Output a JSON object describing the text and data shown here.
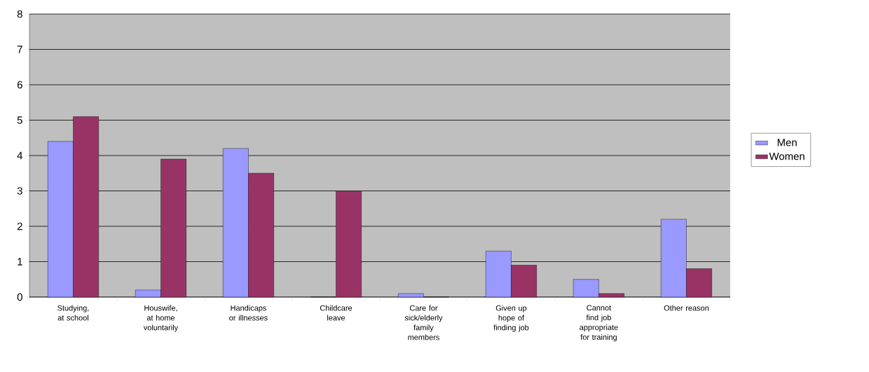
{
  "chart_data": {
    "type": "bar",
    "categories": [
      "Studying, at school",
      "Houswife, at home voluntarily",
      "Handicaps or illnesses",
      "Childcare leave",
      "Care for sick/elderly family members",
      "Given up hope of finding job",
      "Cannot find job appropriate for training",
      "Other reason"
    ],
    "series": [
      {
        "name": "Men",
        "color": "#9999ff",
        "values": [
          4.4,
          0.2,
          4.2,
          0,
          0.1,
          1.3,
          0.5,
          2.2
        ]
      },
      {
        "name": "Women",
        "color": "#993366",
        "values": [
          5.1,
          3.9,
          3.5,
          3.0,
          0,
          0.9,
          0.1,
          0.8
        ]
      }
    ],
    "ylim": [
      0,
      8
    ],
    "yticks": [
      0,
      1,
      2,
      3,
      4,
      5,
      6,
      7,
      8
    ],
    "grid": "y",
    "legend": "right"
  }
}
